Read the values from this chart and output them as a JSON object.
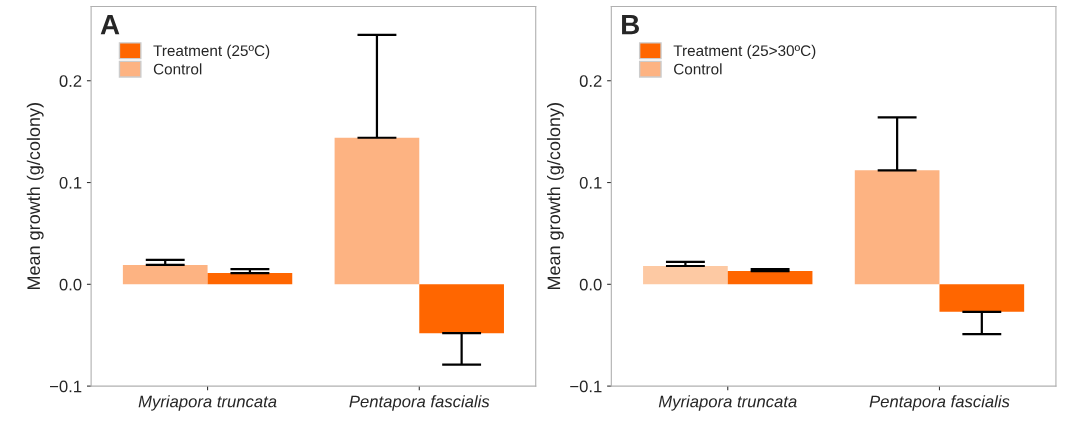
{
  "chart_data": [
    {
      "type": "bar",
      "title": "A",
      "ylabel": "Mean growth (g/colony)",
      "categories": [
        "Myriapora truncata",
        "Pentapora fascialis"
      ],
      "ylim": [
        -0.1,
        0.273
      ],
      "yticks": [
        {
          "value": -0.1,
          "label": "−0.1"
        },
        {
          "value": 0.0,
          "label": "0.0"
        },
        {
          "value": 0.1,
          "label": "0.1"
        },
        {
          "value": 0.2,
          "label": "0.2"
        }
      ],
      "grid": false,
      "legend": "top left",
      "series": [
        {
          "name": "Control",
          "color": "#fdb382",
          "values": [
            0.019,
            0.144
          ],
          "errors": [
            [
              0.019,
              0.024
            ],
            [
              0.144,
              0.245
            ]
          ]
        },
        {
          "name": "Treatment (25ºC)",
          "color": "#ff6600",
          "values": [
            0.011,
            -0.048
          ],
          "errors": [
            [
              0.011,
              0.015
            ],
            [
              -0.079,
              -0.048
            ]
          ]
        }
      ]
    },
    {
      "type": "bar",
      "title": "B",
      "ylabel": "Mean growth (g/colony)",
      "categories": [
        "Myriapora truncata",
        "Pentapora fascialis"
      ],
      "ylim": [
        -0.1,
        0.273
      ],
      "yticks": [
        {
          "value": -0.1,
          "label": "−0.1"
        },
        {
          "value": 0.0,
          "label": "0.0"
        },
        {
          "value": 0.1,
          "label": "0.1"
        },
        {
          "value": 0.2,
          "label": "0.2"
        }
      ],
      "grid": false,
      "legend": "top left",
      "series": [
        {
          "name": "Control",
          "color": "#fdb382",
          "colors": [
            "#fdc9a3",
            "#fdb382"
          ],
          "values": [
            0.018,
            0.112
          ],
          "errors": [
            [
              0.018,
              0.022
            ],
            [
              0.112,
              0.164
            ]
          ]
        },
        {
          "name": "Treatment (25>30ºC)",
          "color": "#ff6600",
          "values": [
            0.013,
            -0.027
          ],
          "errors": [
            [
              0.013,
              0.015
            ],
            [
              -0.049,
              -0.027
            ]
          ]
        }
      ]
    }
  ]
}
